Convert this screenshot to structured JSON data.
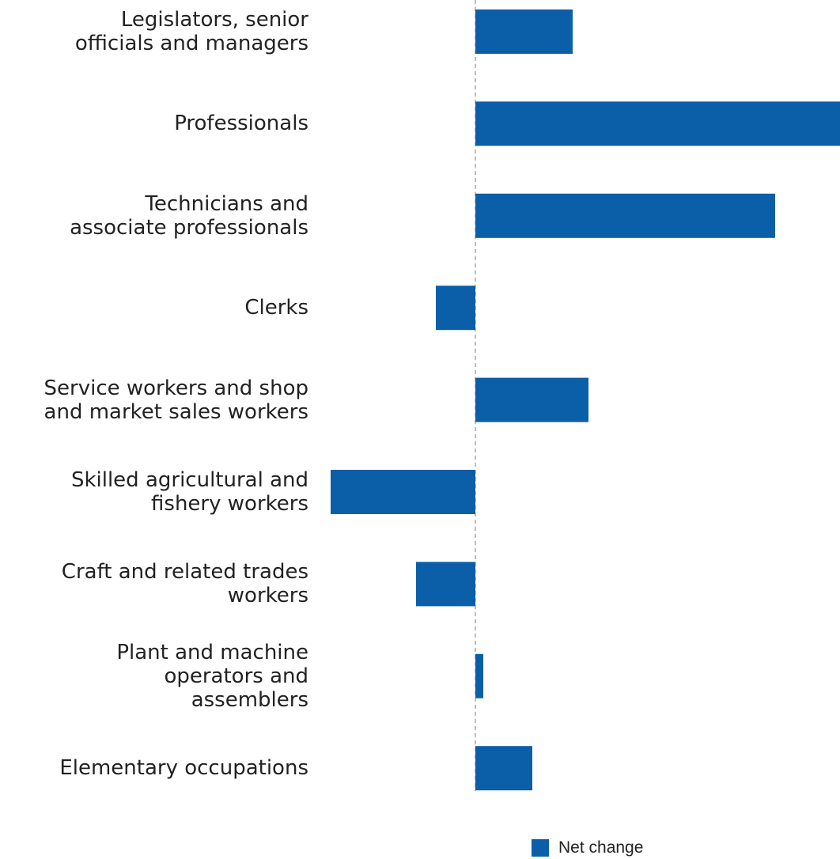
{
  "chart_data": {
    "type": "bar",
    "orientation": "horizontal",
    "categories": [
      "Legislators, senior\nofficials and managers",
      "Professionals",
      "Technicians and\nassociate professionals",
      "Clerks",
      "Service workers and shop\nand market sales workers",
      "Skilled agricultural and\nfishery workers",
      "Craft and related trades\nworkers",
      "Plant and machine\noperators and\nassemblers",
      "Elementary occupations"
    ],
    "series": [
      {
        "name": "Net change",
        "color": "#0b5ea8",
        "values": [
          1.23,
          4.61,
          3.79,
          -0.5,
          1.43,
          -1.83,
          -0.75,
          0.1,
          0.72
        ]
      }
    ],
    "xlim": [
      -6.01,
      4.61
    ],
    "legend": "bottom"
  }
}
